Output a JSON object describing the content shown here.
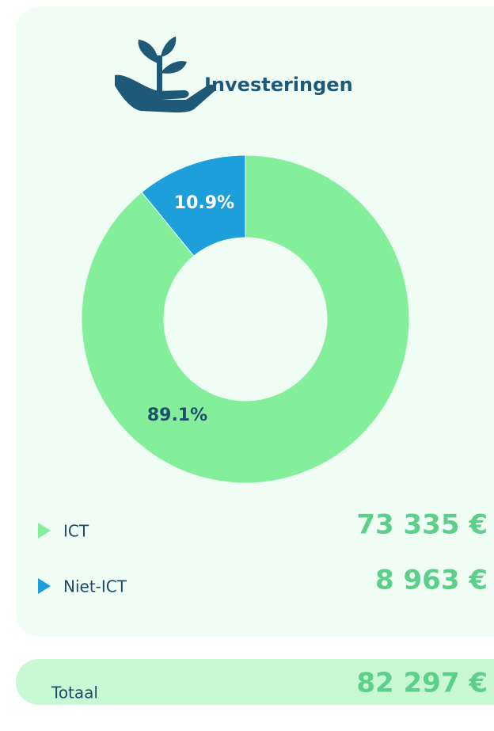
{
  "title": "Investeringen",
  "chart_data": {
    "type": "pie",
    "donut": true,
    "categories": [
      "ICT",
      "Niet-ICT"
    ],
    "values": [
      89.1,
      10.9
    ],
    "value_labels": [
      "89.1%",
      "10.9%"
    ],
    "colors": [
      "#84ef9a",
      "#1d9fdb"
    ]
  },
  "legend": {
    "amounts": [
      "73 335 €",
      "8 963 €"
    ]
  },
  "total": {
    "label": "Totaal",
    "amount": "82 297 €"
  }
}
